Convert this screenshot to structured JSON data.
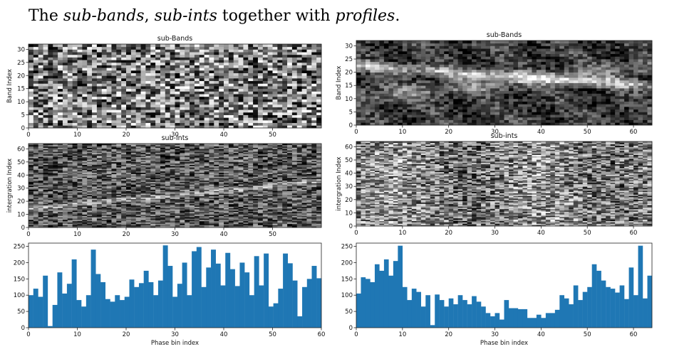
{
  "heading": {
    "prefix": "The ",
    "term1": "sub-bands",
    "sep1": ", ",
    "term2": "sub-ints",
    "middle": " together with ",
    "term3": "profiles",
    "suffix": "."
  },
  "colors": {
    "bar": "#1f77b4",
    "axis": "#222222"
  },
  "chart_data": [
    {
      "type": "heatmap",
      "title": "sub-Bands",
      "xlabel": "",
      "ylabel": "Band Index",
      "xlim": [
        0,
        60
      ],
      "ylim": [
        0,
        32
      ],
      "x_ticks": [
        "0",
        "10",
        "20",
        "30",
        "40",
        "50"
      ],
      "y_ticks": [
        "0",
        "5",
        "10",
        "15",
        "20",
        "25",
        "30"
      ],
      "grid": false
    },
    {
      "type": "heatmap",
      "title": "sub-Bands",
      "xlabel": "",
      "ylabel": "Band Index",
      "xlim": [
        0,
        64
      ],
      "ylim": [
        0,
        32
      ],
      "x_ticks": [
        "0",
        "10",
        "20",
        "30",
        "40",
        "50",
        "60"
      ],
      "y_ticks": [
        "0",
        "5",
        "10",
        "15",
        "20",
        "25",
        "30"
      ],
      "grid": false
    },
    {
      "type": "heatmap",
      "title": "sub-ints",
      "xlabel": "",
      "ylabel": "intergration Index",
      "xlim": [
        0,
        60
      ],
      "ylim": [
        0,
        64
      ],
      "x_ticks": [
        "0",
        "10",
        "20",
        "30",
        "40",
        "50"
      ],
      "y_ticks": [
        "0",
        "10",
        "20",
        "30",
        "40",
        "50",
        "60"
      ],
      "grid": false
    },
    {
      "type": "heatmap",
      "title": "sub-ints",
      "xlabel": "",
      "ylabel": "intergration Index",
      "xlim": [
        0,
        64
      ],
      "ylim": [
        0,
        64
      ],
      "x_ticks": [
        "0",
        "10",
        "20",
        "30",
        "40",
        "50",
        "60"
      ],
      "y_ticks": [
        "0",
        "10",
        "20",
        "30",
        "40",
        "50",
        "60"
      ],
      "grid": false
    },
    {
      "type": "bar",
      "title": "",
      "xlabel": "Phase bin index",
      "ylabel": "",
      "xlim": [
        0,
        60
      ],
      "ylim": [
        0,
        260
      ],
      "x_ticks": [
        "0",
        "10",
        "20",
        "30",
        "40",
        "50",
        "60"
      ],
      "y_ticks": [
        "0",
        "50",
        "100",
        "150",
        "200",
        "250"
      ],
      "values": [
        100,
        120,
        95,
        160,
        5,
        70,
        170,
        105,
        135,
        210,
        85,
        65,
        100,
        240,
        165,
        140,
        88,
        80,
        100,
        85,
        95,
        148,
        125,
        137,
        175,
        140,
        100,
        145,
        253,
        190,
        95,
        135,
        200,
        100,
        235,
        248,
        125,
        185,
        240,
        197,
        130,
        230,
        180,
        128,
        200,
        170,
        100,
        220,
        130,
        228,
        65,
        75,
        120,
        228,
        198,
        145,
        35,
        125,
        150,
        190,
        152
      ],
      "grid": false
    },
    {
      "type": "bar",
      "title": "",
      "xlabel": "Phase bin index",
      "ylabel": "",
      "xlim": [
        0,
        64
      ],
      "ylim": [
        0,
        260
      ],
      "x_ticks": [
        "0",
        "10",
        "20",
        "30",
        "40",
        "50",
        "60"
      ],
      "y_ticks": [
        "0",
        "50",
        "100",
        "150",
        "200",
        "250"
      ],
      "values": [
        105,
        155,
        150,
        140,
        195,
        175,
        210,
        160,
        205,
        252,
        125,
        85,
        120,
        110,
        65,
        100,
        8,
        102,
        85,
        65,
        90,
        72,
        100,
        85,
        72,
        97,
        80,
        65,
        45,
        35,
        45,
        25,
        85,
        60,
        60,
        57,
        57,
        30,
        30,
        40,
        30,
        45,
        45,
        55,
        100,
        90,
        72,
        130,
        85,
        110,
        125,
        195,
        175,
        145,
        125,
        120,
        108,
        130,
        88,
        185,
        100,
        252,
        90,
        160
      ],
      "grid": false
    }
  ]
}
